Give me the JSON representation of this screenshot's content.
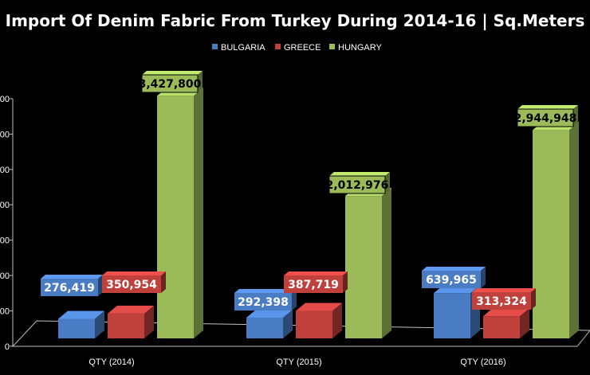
{
  "chart_data": {
    "type": "bar",
    "title": "Import Of Denim Fabric From Turkey During 2014-16  | Sq.Meters",
    "categories": [
      "QTY (2014)",
      "QTY (2015)",
      "QTY (2016)"
    ],
    "series": [
      {
        "name": "BULGARIA",
        "values": [
          276419,
          292398,
          639965
        ],
        "labels": [
          "276,419",
          "292,398",
          "639,965"
        ],
        "color": "#4a7cc4"
      },
      {
        "name": "GREECE",
        "values": [
          350954,
          387719,
          313324
        ],
        "labels": [
          "350,954",
          "387,719",
          "313,324"
        ],
        "color": "#c0403c"
      },
      {
        "name": "HUNGARY",
        "values": [
          3427800,
          2012976,
          2944948
        ],
        "labels": [
          "3,427,800",
          "2,012,976",
          "2,944,948"
        ],
        "color": "#9bbb59"
      }
    ],
    "yticks": [
      "000",
      "000",
      "000",
      "000",
      "000",
      "000",
      "000",
      "0"
    ],
    "ylim": [
      0,
      3500000
    ],
    "legend_position": "top"
  }
}
